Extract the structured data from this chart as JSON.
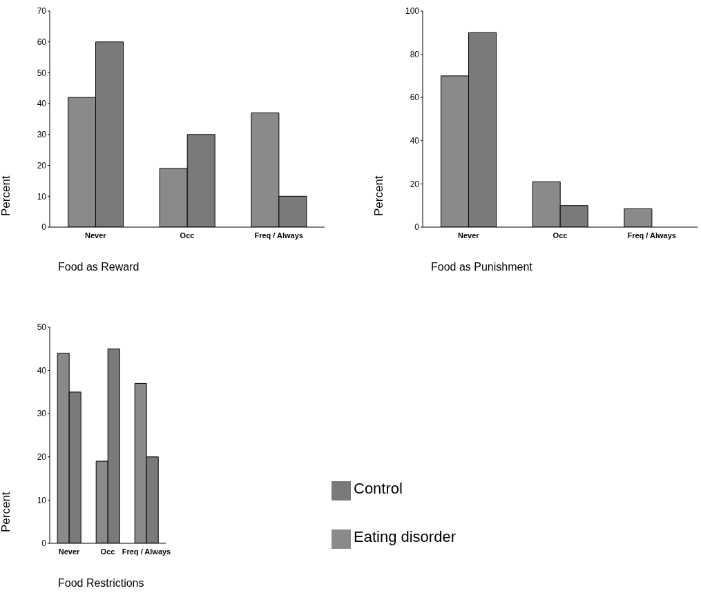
{
  "chart_data": [
    {
      "type": "bar",
      "title": "Food as Reward",
      "ylabel": "Percent",
      "categories": [
        "Never",
        "Occ",
        "Freq / Always"
      ],
      "series": [
        {
          "color": "#8a8a8a",
          "values": [
            42,
            19,
            37
          ]
        },
        {
          "color": "#7a7a7a",
          "values": [
            60,
            30,
            10
          ]
        }
      ],
      "ylim": [
        0,
        70
      ],
      "yticks": [
        0,
        10,
        20,
        30,
        40,
        50,
        60,
        70
      ],
      "grid": false,
      "legend": false
    },
    {
      "type": "bar",
      "title": "Food as Punishment",
      "ylabel": "Percent",
      "categories": [
        "Never",
        "Occ",
        "Freq / Always"
      ],
      "series": [
        {
          "color": "#8a8a8a",
          "values": [
            70,
            21,
            8.5
          ]
        },
        {
          "color": "#7a7a7a",
          "values": [
            90,
            10,
            0
          ]
        }
      ],
      "ylim": [
        0,
        100
      ],
      "yticks": [
        0,
        20,
        40,
        60,
        80,
        100
      ],
      "grid": false,
      "legend": false
    },
    {
      "type": "bar",
      "title": "Food Restrictions",
      "ylabel": "Percent",
      "categories": [
        "Never",
        "Occ",
        "Freq / Always"
      ],
      "series": [
        {
          "name": "Eating disorder",
          "color": "#8a8a8a",
          "values": [
            44,
            19,
            37
          ]
        },
        {
          "name": "Control",
          "color": "#7a7a7a",
          "values": [
            35,
            45,
            20
          ]
        }
      ],
      "ylim": [
        0,
        50
      ],
      "yticks": [
        0,
        10,
        20,
        30,
        40,
        50
      ],
      "grid": false,
      "legend": "right"
    }
  ]
}
